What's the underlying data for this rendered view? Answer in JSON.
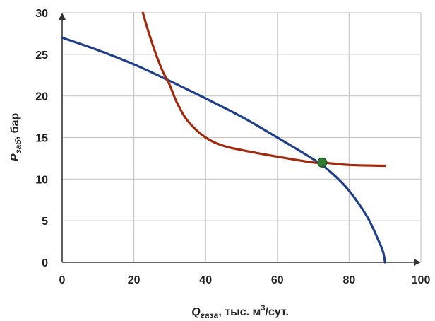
{
  "chart_data": {
    "type": "line",
    "xlabel_main": "Q",
    "xlabel_sub": "газа",
    "xlabel_rest": ", тыс. м",
    "xlabel_sup": "3",
    "xlabel_tail": "/сут.",
    "ylabel_main": "P",
    "ylabel_sub": "заб",
    "ylabel_rest": ", бар",
    "xlim": [
      0,
      100
    ],
    "ylim": [
      0,
      30
    ],
    "xticks": [
      0,
      20,
      40,
      60,
      80,
      100
    ],
    "yticks": [
      0,
      5,
      10,
      15,
      20,
      25,
      30
    ],
    "grid": true,
    "series": [
      {
        "color": "#1f3f8a",
        "x": [
          0,
          10,
          20,
          30,
          40,
          50,
          60,
          70,
          75,
          80,
          85,
          88,
          89.5,
          90
        ],
        "y": [
          27,
          25.5,
          23.8,
          21.8,
          19.7,
          17.5,
          15.0,
          12.4,
          10.8,
          8.6,
          5.5,
          2.8,
          1.2,
          0
        ]
      },
      {
        "color": "#a0290e",
        "x": [
          22.5,
          24,
          26,
          28,
          30,
          32,
          35,
          40,
          45,
          50,
          60,
          70,
          72.5,
          80,
          90
        ],
        "y": [
          30,
          27.8,
          25.2,
          23.0,
          21.3,
          19.2,
          17.0,
          15.0,
          14.0,
          13.5,
          12.7,
          12.0,
          12.0,
          11.7,
          11.6
        ]
      }
    ],
    "intersection": {
      "x": 72.5,
      "y": 12.0,
      "color": "#2e7d32"
    }
  }
}
